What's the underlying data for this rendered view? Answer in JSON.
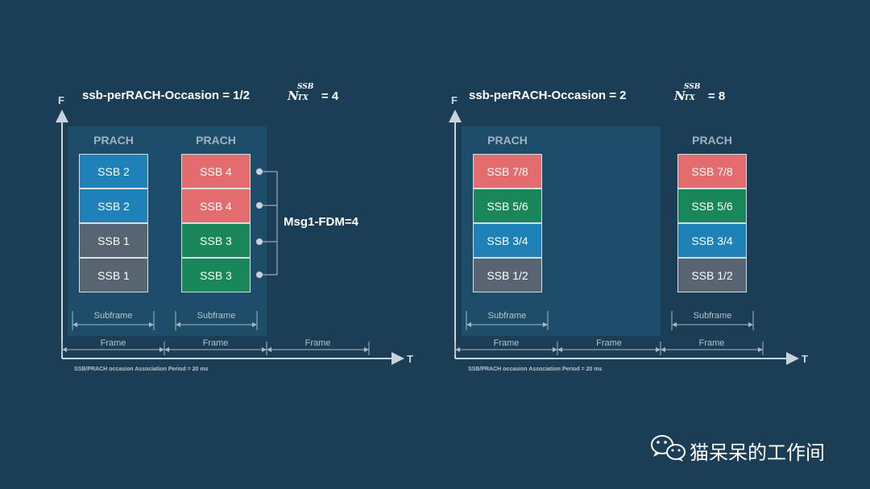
{
  "left": {
    "title": "ssb-perRACH-Occasion = 1/2",
    "ntx": {
      "base": "N",
      "sup": "SSB",
      "sub": "TX",
      "value": "= 4"
    },
    "axis_f": "F",
    "axis_t": "T",
    "prach_1": "PRACH",
    "prach_2": "PRACH",
    "col1": [
      "SSB 2",
      "SSB 2",
      "SSB 1",
      "SSB 1"
    ],
    "col2": [
      "SSB 4",
      "SSB 4",
      "SSB 3",
      "SSB 3"
    ],
    "fdm": "Msg1-FDM=4",
    "subframe": "Subframe",
    "frame": "Frame",
    "period": "SSB/PRACH occasion Association Period = 20 ms"
  },
  "right": {
    "title": "ssb-perRACH-Occasion = 2",
    "ntx": {
      "base": "N",
      "sup": "SSB",
      "sub": "TX",
      "value": "= 8"
    },
    "axis_f": "F",
    "axis_t": "T",
    "prach_1": "PRACH",
    "prach_2": "PRACH",
    "col1": [
      "SSB 7/8",
      "SSB 5/6",
      "SSB 3/4",
      "SSB 1/2"
    ],
    "col2": [
      "SSB 7/8",
      "SSB 5/6",
      "SSB 3/4",
      "SSB 1/2"
    ],
    "subframe": "Subframe",
    "frame": "Frame",
    "period": "SSB/PRACH occasion Association Period = 20 ms"
  },
  "colors": {
    "blue": "#1e82b8",
    "grey": "#566571",
    "red": "#e36d6e",
    "green": "#1a875a"
  },
  "watermark": {
    "icon": "wechat-icon",
    "text": "猫呆呆的工作间"
  }
}
